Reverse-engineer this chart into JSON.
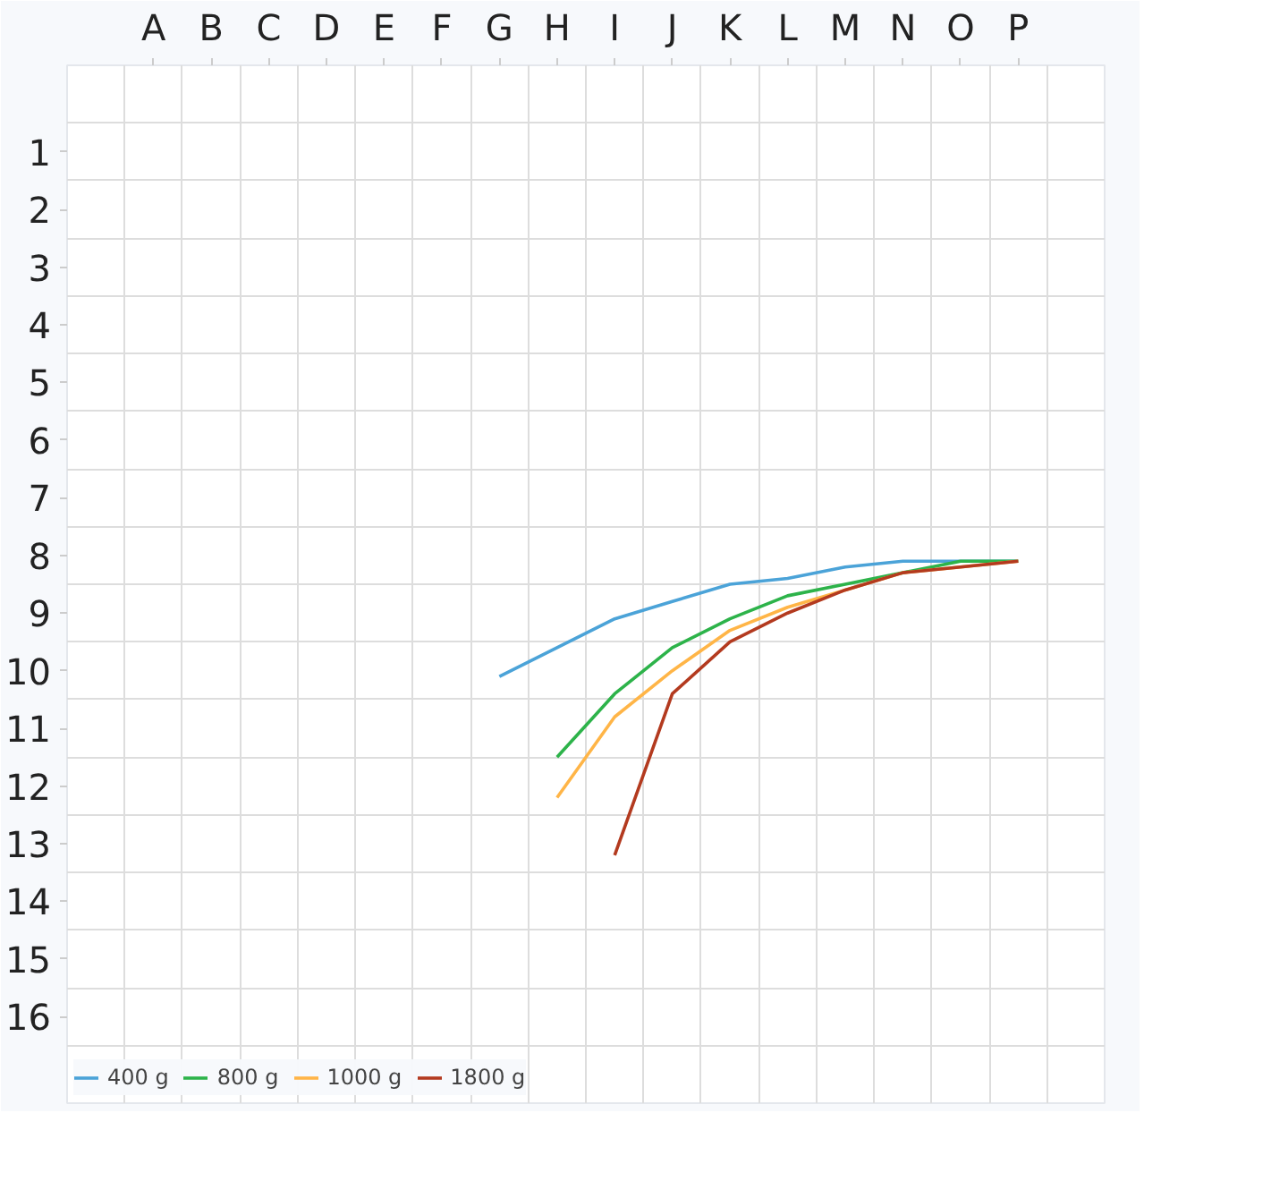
{
  "chart_data": {
    "type": "line",
    "ylim": [
      17.5,
      -0.5
    ],
    "categories": [
      "A",
      "B",
      "C",
      "D",
      "E",
      "F",
      "G",
      "H",
      "I",
      "J",
      "K",
      "L",
      "M",
      "N",
      "O",
      "P"
    ],
    "yticks": [
      1,
      2,
      3,
      4,
      5,
      6,
      7,
      8,
      9,
      10,
      11,
      12,
      13,
      14,
      15,
      16
    ],
    "grid": true,
    "legend": "bottom left",
    "marker": "none",
    "line_style": "solid",
    "series": [
      {
        "name": "400 g",
        "color": "#4ba3d8",
        "values": [
          null,
          null,
          null,
          null,
          null,
          null,
          10.1,
          9.6,
          9.1,
          8.8,
          8.5,
          8.4,
          8.2,
          8.1,
          8.1,
          8.1
        ]
      },
      {
        "name": "800 g",
        "color": "#2db34a",
        "values": [
          null,
          null,
          null,
          null,
          null,
          null,
          null,
          11.5,
          10.4,
          9.6,
          9.1,
          8.7,
          8.5,
          8.3,
          8.1,
          8.1
        ]
      },
      {
        "name": "1000 g",
        "color": "#ffb547",
        "values": [
          null,
          null,
          null,
          null,
          null,
          null,
          null,
          12.2,
          10.8,
          10,
          9.3,
          8.9,
          8.6,
          8.3,
          8.2,
          8.1
        ]
      },
      {
        "name": "1800 g",
        "color": "#b33a1f",
        "values": [
          null,
          null,
          null,
          null,
          null,
          null,
          null,
          null,
          13.2,
          10.4,
          9.5,
          9,
          8.6,
          8.3,
          8.2,
          8.1
        ]
      }
    ]
  }
}
